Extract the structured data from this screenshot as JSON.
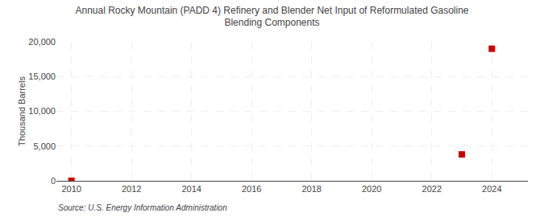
{
  "chart_data": {
    "type": "scatter",
    "title": "Annual Rocky Mountain (PADD 4) Refinery and Blender Net Input of Reformulated Gasoline\nBlending Components",
    "ylabel": "Thousand Barrels",
    "annotation": "Source: U.S. Energy Information Administration",
    "x": [
      2010,
      2023,
      2024
    ],
    "values": [
      10,
      3800,
      19000
    ],
    "color": "#cc0000",
    "marker": "square",
    "xlim": [
      2009.5,
      2025.2
    ],
    "xticks": [
      2010,
      2012,
      2014,
      2016,
      2018,
      2020,
      2022,
      2024
    ],
    "ylim": [
      0,
      20000
    ],
    "yticks": [
      0,
      {
        "value": 5000,
        "label": "5,000"
      },
      {
        "value": 10000,
        "label": "10,000"
      },
      {
        "value": 15000,
        "label": "15,000"
      },
      {
        "value": 20000,
        "label": "20,000"
      }
    ],
    "grid": true
  }
}
